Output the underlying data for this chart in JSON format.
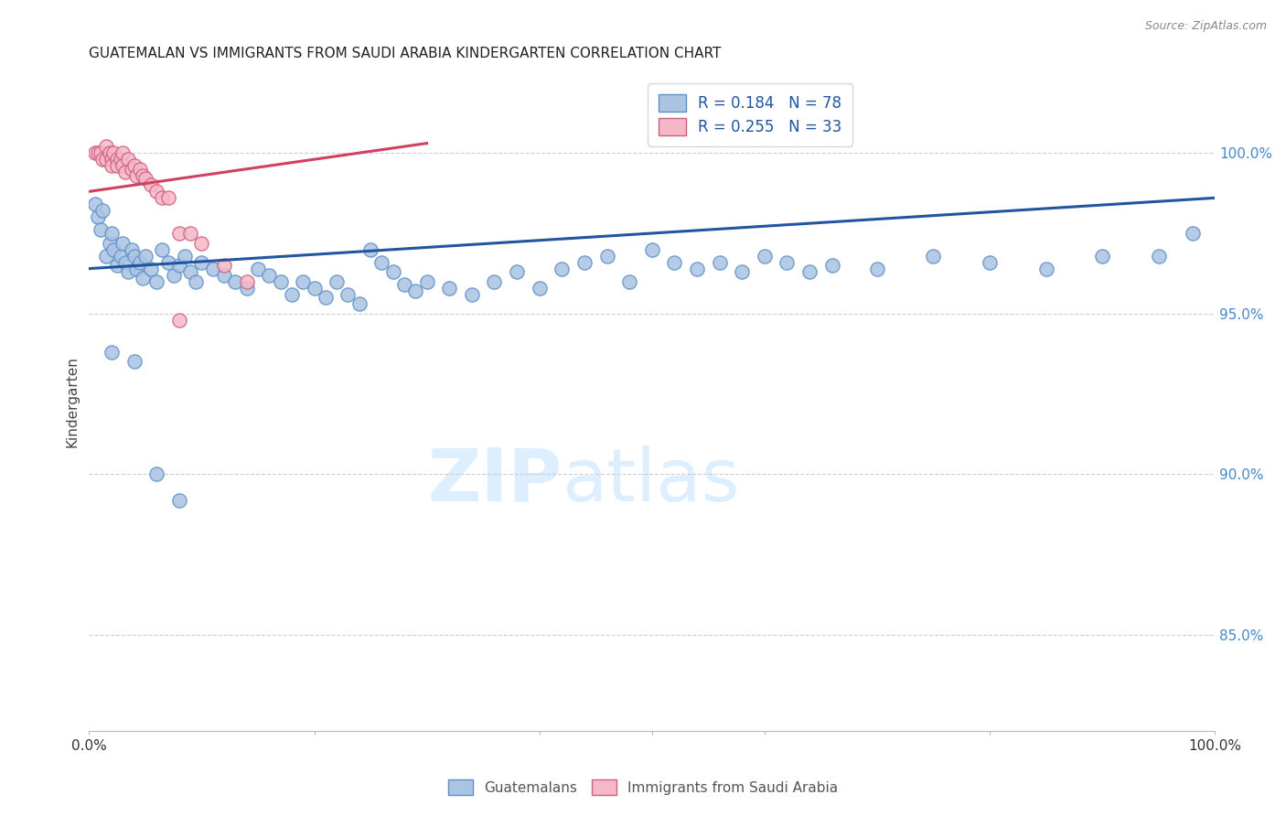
{
  "title": "GUATEMALAN VS IMMIGRANTS FROM SAUDI ARABIA KINDERGARTEN CORRELATION CHART",
  "source": "Source: ZipAtlas.com",
  "ylabel": "Kindergarten",
  "y_ticks": [
    1.0,
    0.95,
    0.9,
    0.85
  ],
  "y_tick_labels": [
    "100.0%",
    "95.0%",
    "90.0%",
    "85.0%"
  ],
  "xmin": 0.0,
  "xmax": 1.0,
  "ymin": 0.82,
  "ymax": 1.025,
  "blue_R": 0.184,
  "blue_N": 78,
  "pink_R": 0.255,
  "pink_N": 33,
  "blue_color": "#aac4e2",
  "blue_edge_color": "#6090c8",
  "blue_line_color": "#2255a0",
  "pink_color": "#f5b8c8",
  "pink_edge_color": "#d06080",
  "pink_line_color": "#d04060",
  "legend_color": "#2255a0",
  "watermark_color": "#ddeeff",
  "background_color": "#ffffff",
  "grid_color": "#ccccdd",
  "blue_line_x0": 0.0,
  "blue_line_y0": 0.964,
  "blue_line_x1": 1.0,
  "blue_line_y1": 0.986,
  "pink_line_x0": 0.0,
  "pink_line_y0": 0.988,
  "pink_line_x1": 0.3,
  "pink_line_y1": 1.003,
  "blue_x": [
    0.005,
    0.008,
    0.01,
    0.012,
    0.015,
    0.018,
    0.02,
    0.022,
    0.025,
    0.028,
    0.03,
    0.032,
    0.035,
    0.038,
    0.04,
    0.042,
    0.045,
    0.048,
    0.05,
    0.055,
    0.06,
    0.065,
    0.07,
    0.075,
    0.08,
    0.085,
    0.09,
    0.095,
    0.1,
    0.11,
    0.12,
    0.13,
    0.14,
    0.15,
    0.16,
    0.17,
    0.18,
    0.19,
    0.2,
    0.21,
    0.22,
    0.23,
    0.24,
    0.25,
    0.26,
    0.27,
    0.28,
    0.29,
    0.3,
    0.32,
    0.34,
    0.36,
    0.38,
    0.4,
    0.42,
    0.44,
    0.46,
    0.48,
    0.5,
    0.52,
    0.54,
    0.56,
    0.58,
    0.6,
    0.62,
    0.64,
    0.66,
    0.7,
    0.75,
    0.8,
    0.85,
    0.9,
    0.95,
    0.98,
    0.02,
    0.04,
    0.06,
    0.08
  ],
  "blue_y": [
    0.984,
    0.98,
    0.976,
    0.982,
    0.968,
    0.972,
    0.975,
    0.97,
    0.965,
    0.968,
    0.972,
    0.966,
    0.963,
    0.97,
    0.968,
    0.964,
    0.966,
    0.961,
    0.968,
    0.964,
    0.96,
    0.97,
    0.966,
    0.962,
    0.965,
    0.968,
    0.963,
    0.96,
    0.966,
    0.964,
    0.962,
    0.96,
    0.958,
    0.964,
    0.962,
    0.96,
    0.956,
    0.96,
    0.958,
    0.955,
    0.96,
    0.956,
    0.953,
    0.97,
    0.966,
    0.963,
    0.959,
    0.957,
    0.96,
    0.958,
    0.956,
    0.96,
    0.963,
    0.958,
    0.964,
    0.966,
    0.968,
    0.96,
    0.97,
    0.966,
    0.964,
    0.966,
    0.963,
    0.968,
    0.966,
    0.963,
    0.965,
    0.964,
    0.968,
    0.966,
    0.964,
    0.968,
    0.968,
    0.975,
    0.938,
    0.935,
    0.9,
    0.892
  ],
  "pink_x": [
    0.005,
    0.008,
    0.01,
    0.012,
    0.015,
    0.015,
    0.018,
    0.02,
    0.02,
    0.022,
    0.025,
    0.025,
    0.028,
    0.03,
    0.03,
    0.032,
    0.035,
    0.038,
    0.04,
    0.042,
    0.045,
    0.048,
    0.05,
    0.055,
    0.06,
    0.065,
    0.07,
    0.08,
    0.09,
    0.1,
    0.12,
    0.14,
    0.08
  ],
  "pink_y": [
    1.0,
    1.0,
    1.0,
    0.998,
    1.002,
    0.998,
    1.0,
    0.998,
    0.996,
    1.0,
    0.998,
    0.996,
    0.998,
    1.0,
    0.996,
    0.994,
    0.998,
    0.995,
    0.996,
    0.993,
    0.995,
    0.993,
    0.992,
    0.99,
    0.988,
    0.986,
    0.986,
    0.975,
    0.975,
    0.972,
    0.965,
    0.96,
    0.948
  ]
}
